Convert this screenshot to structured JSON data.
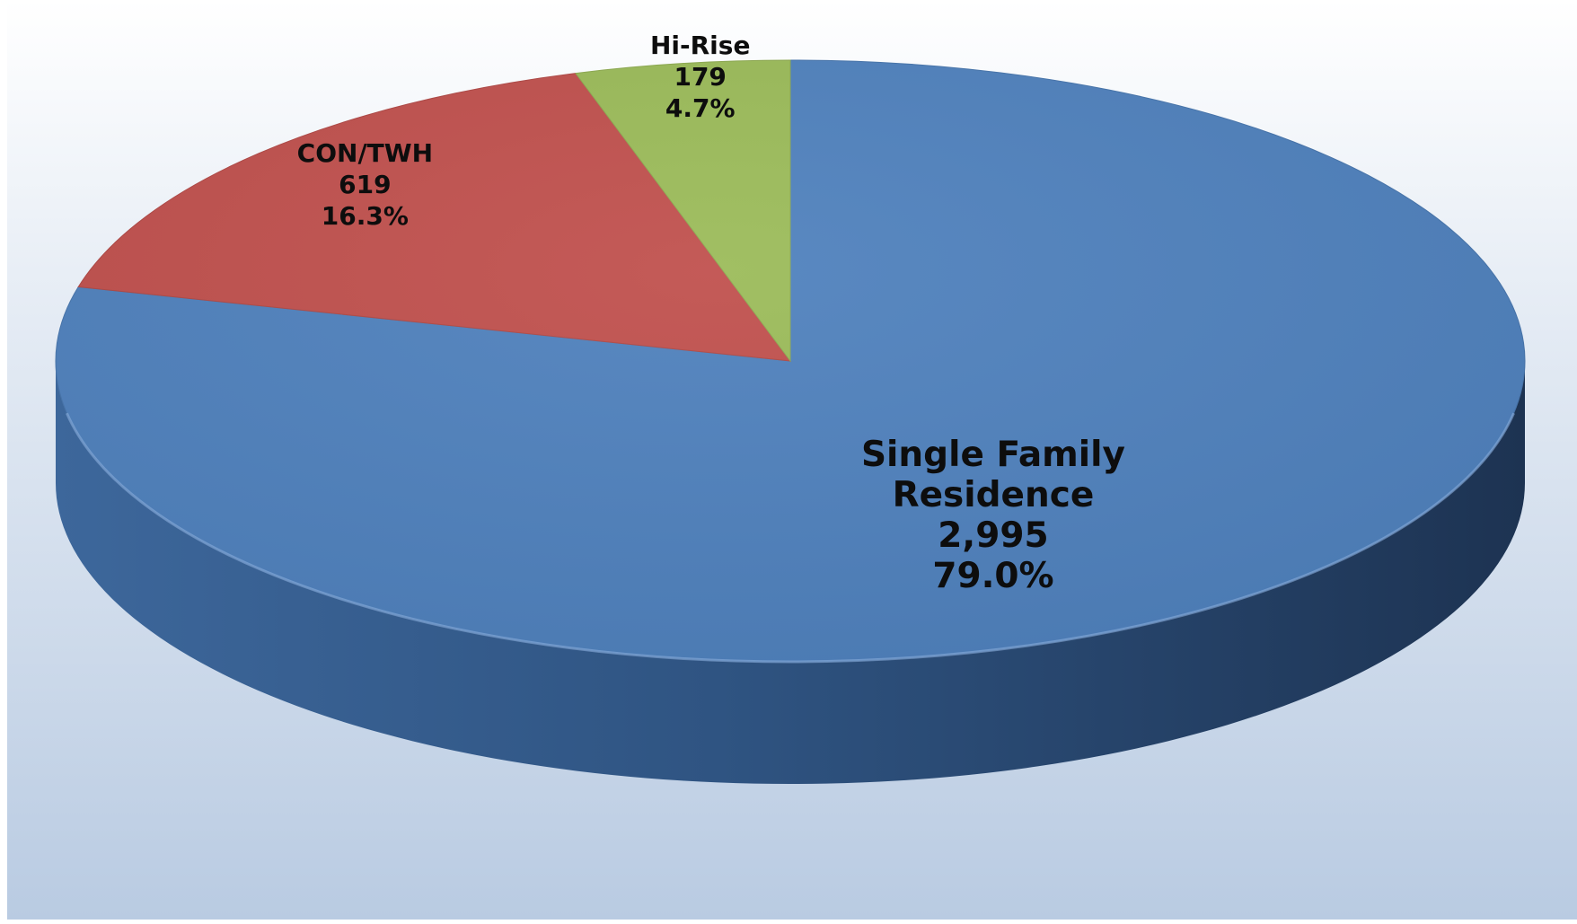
{
  "chart_data": {
    "type": "pie",
    "title": "",
    "slices": [
      {
        "label": "Single Family Residence",
        "label_lines": [
          "Single Family",
          "Residence"
        ],
        "value": 2995,
        "value_text": "2,995",
        "percent": 79.0,
        "percent_text": "79.0%",
        "color": "#4f81bd"
      },
      {
        "label": "CON/TWH",
        "label_lines": [
          "CON/TWH"
        ],
        "value": 619,
        "value_text": "619",
        "percent": 16.3,
        "percent_text": "16.3%",
        "color": "#c0504d"
      },
      {
        "label": "Hi-Rise",
        "label_lines": [
          "Hi-Rise"
        ],
        "value": 179,
        "value_text": "179",
        "percent": 4.7,
        "percent_text": "4.7%",
        "color": "#9bbb59"
      }
    ],
    "legend": "none",
    "start_angle_deg": 0,
    "direction": "clockwise",
    "style": "3d-tilted"
  }
}
